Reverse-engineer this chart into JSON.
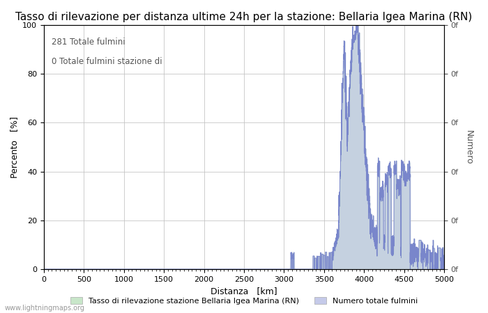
{
  "title": "Tasso di rilevazione per distanza ultime 24h per la stazione: Bellaria Igea Marina (RN)",
  "xlabel": "Distanza   [km]",
  "ylabel_left": "Percento   [%]",
  "ylabel_right": "Numero",
  "annotation_line1": "281 Totale fulmini",
  "annotation_line2": "0 Totale fulmini stazione di",
  "legend_label1": "Tasso di rilevazione stazione Bellaria Igea Marina (RN)",
  "legend_label2": "Numero totale fulmini",
  "xlim": [
    0,
    5000
  ],
  "ylim_left": [
    0,
    100
  ],
  "watermark": "www.lightningmaps.org",
  "fill_color_green": "#c8e6c9",
  "fill_color_blue": "#c5cae9",
  "line_color": "#7986cb",
  "background_color": "#ffffff",
  "grid_color": "#c0c0c0",
  "title_fontsize": 11,
  "label_fontsize": 9,
  "tick_fontsize": 8,
  "xticks": [
    0,
    500,
    1000,
    1500,
    2000,
    2500,
    3000,
    3500,
    4000,
    4500,
    5000
  ],
  "yticks_left": [
    0,
    20,
    40,
    60,
    80,
    100
  ],
  "right_tick_labels": [
    "0f",
    "0f",
    "0f",
    "0f",
    "0f",
    "0f"
  ]
}
